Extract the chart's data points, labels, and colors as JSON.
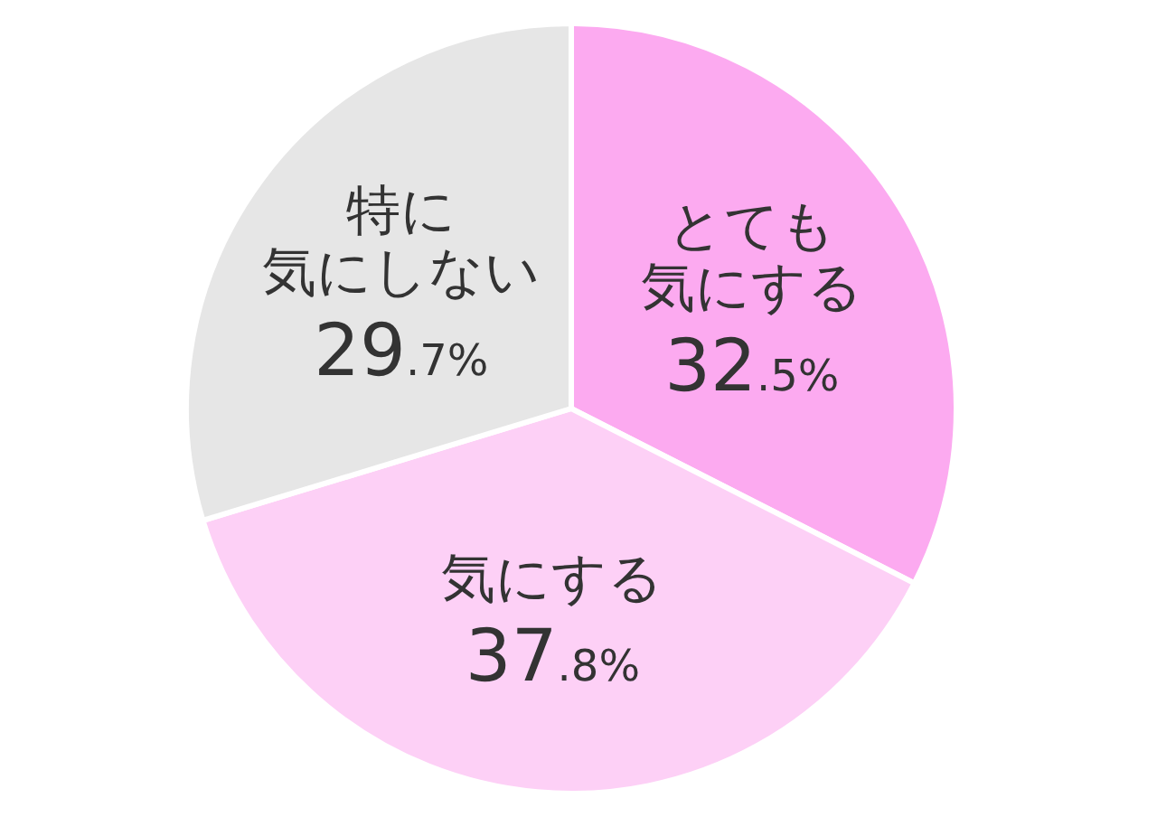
{
  "chart_data": {
    "type": "pie",
    "categories": [
      "とても気にする",
      "気にする",
      "特に気にしない"
    ],
    "values": [
      32.5,
      37.8,
      29.7
    ],
    "colors": [
      "#fcaaf0",
      "#fdd0f6",
      "#e6e6e6"
    ],
    "value_labels": [
      "32.5%",
      "37.8%",
      "29.7%"
    ]
  }
}
